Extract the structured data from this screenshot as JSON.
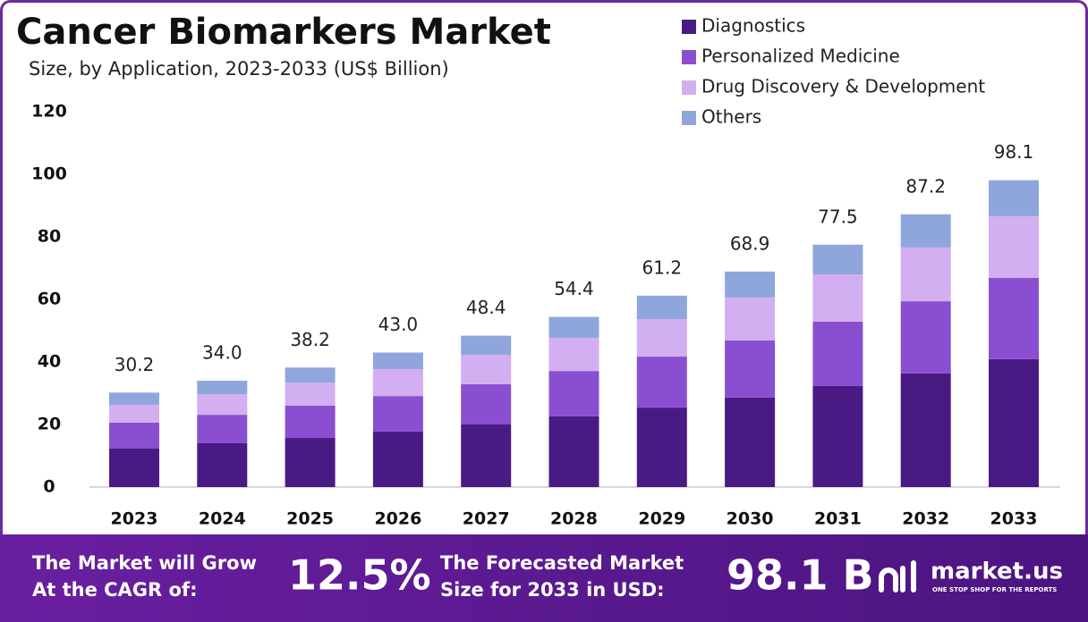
{
  "chart_data": {
    "type": "stacked_bar",
    "title": "Cancer Biomarkers Market",
    "subtitle": "Size, by Application, 2023-2033 (US$ Billion)",
    "categories": [
      "2023",
      "2024",
      "2025",
      "2026",
      "2027",
      "2028",
      "2029",
      "2030",
      "2031",
      "2032",
      "2033"
    ],
    "series": [
      {
        "name": "Diagnostics",
        "color": "#4a1a84",
        "values": [
          12.3,
          14.0,
          15.7,
          17.7,
          20.0,
          22.6,
          25.4,
          28.6,
          32.3,
          36.3,
          40.9
        ]
      },
      {
        "name": "Personalized Medicine",
        "color": "#8a4fd0",
        "values": [
          8.3,
          9.1,
          10.3,
          11.4,
          12.9,
          14.5,
          16.3,
          18.3,
          20.6,
          23.1,
          26.0
        ]
      },
      {
        "name": "Drug Discovery & Development",
        "color": "#d3aef0",
        "values": [
          5.7,
          6.6,
          7.4,
          8.6,
          9.4,
          10.6,
          12.0,
          13.7,
          15.1,
          17.2,
          19.7
        ]
      },
      {
        "name": "Others",
        "color": "#8fa6dd",
        "values": [
          3.9,
          4.3,
          4.8,
          5.3,
          6.1,
          6.7,
          7.5,
          8.3,
          9.5,
          10.6,
          11.5
        ]
      }
    ],
    "totals": {
      "values": [
        30.2,
        34.0,
        38.2,
        43.0,
        48.4,
        54.4,
        61.2,
        68.9,
        77.5,
        87.2,
        98.1
      ],
      "value_labels": [
        "30.2",
        "34.0",
        "38.2",
        "43.0",
        "48.4",
        "54.4",
        "61.2",
        "68.9",
        "77.5",
        "87.2",
        "98.1"
      ]
    },
    "ylim": [
      0,
      120
    ],
    "yticks": [
      0,
      20,
      40,
      60,
      80,
      100,
      120
    ],
    "grid": false,
    "legend": "top-right"
  },
  "footer": {
    "cagr_text": [
      "The Market will Grow",
      "At the CAGR of:"
    ],
    "cagr_value": "12.5%",
    "forecast_text": [
      "The Forecasted Market",
      "Size for 2033 in USD:"
    ],
    "forecast_value": "98.1 B",
    "brand": "market.us",
    "tagline": "ONE STOP SHOP FOR THE REPORTS"
  }
}
